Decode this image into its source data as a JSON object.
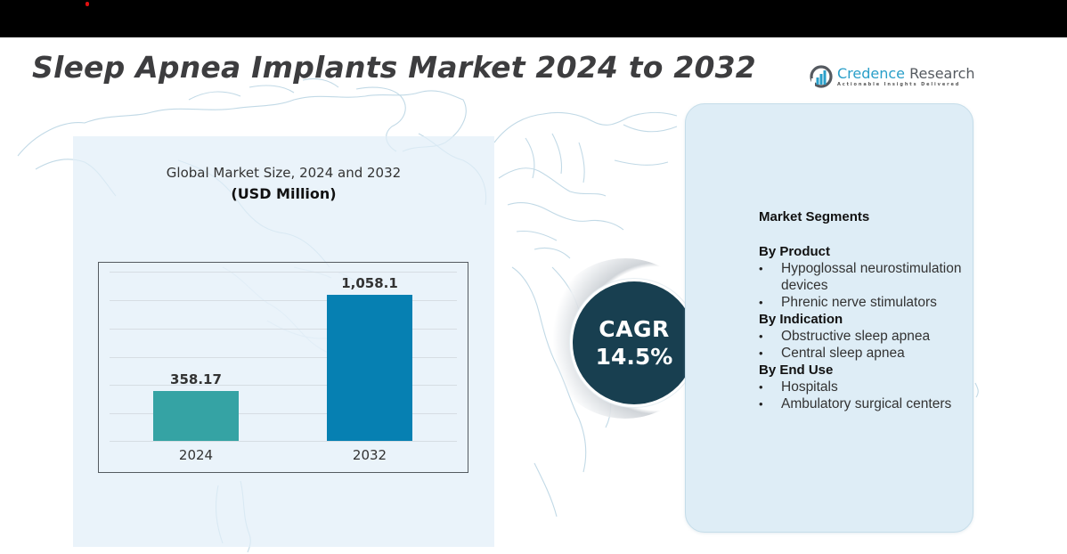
{
  "header": {
    "title": "Sleep Apnea Implants Market 2024 to 2032"
  },
  "logo": {
    "name_part1": "Credence",
    "name_part2": " Research",
    "tagline": "Actionable Insights Delivered",
    "icon": "bar-chart-circle-icon",
    "colors": {
      "primary": "#2a9fc9",
      "secondary": "#555a60"
    }
  },
  "chart_panel": {
    "subtitle": "Global Market Size, 2024 and 2032",
    "unit": "(USD Million)"
  },
  "chart_data": {
    "type": "bar",
    "title": "Global Market Size, 2024 and 2032",
    "subtitle": "(USD Million)",
    "categories": [
      "2024",
      "2032"
    ],
    "values": [
      358.17,
      1058.1
    ],
    "value_labels": [
      "358.17",
      "1,058.1"
    ],
    "colors": [
      "#35a3a4",
      "#0680b2"
    ],
    "xlabel": "",
    "ylabel": "USD Million",
    "ylim": [
      0,
      1200
    ],
    "grid": true,
    "legend": null
  },
  "cagr": {
    "label": "CAGR",
    "value": "14.5%",
    "color": "#183f50"
  },
  "segments": {
    "heading": "Market Segments",
    "groups": [
      {
        "title": "By Product",
        "items": [
          "Hypoglossal neurostimulation devices",
          "Phrenic nerve stimulators"
        ]
      },
      {
        "title": "By Indication",
        "items": [
          "Obstructive sleep apnea",
          "Central sleep apnea"
        ]
      },
      {
        "title": "By End Use",
        "items": [
          "Hospitals",
          "Ambulatory surgical centers"
        ]
      }
    ],
    "bullet": "•"
  }
}
